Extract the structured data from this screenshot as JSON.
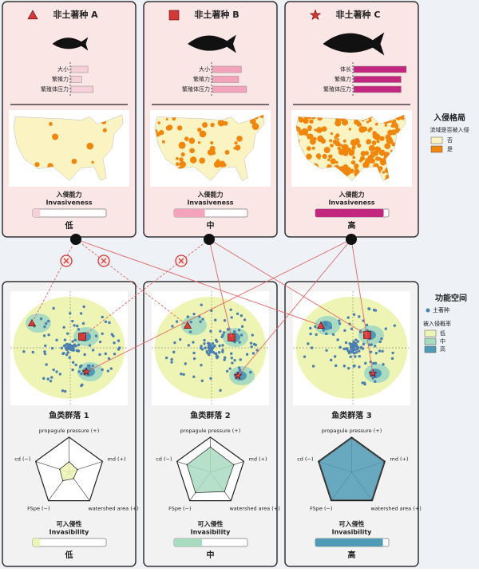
{
  "species": [
    {
      "name": "非土著种 A",
      "traits": [
        {
          "label": "大小",
          "value": 0.32
        },
        {
          "label": "繁殖力",
          "value": 0.2
        },
        {
          "label": "繁殖体压力",
          "value": 0.42
        }
      ],
      "invasiveness": 0.1,
      "level": "低"
    },
    {
      "name": "非土著种 B",
      "traits": [
        {
          "label": "大小",
          "value": 0.55
        },
        {
          "label": "繁殖力",
          "value": 0.5
        },
        {
          "label": "繁殖体压力",
          "value": 0.65
        }
      ],
      "invasiveness": 0.42,
      "level": "中"
    },
    {
      "name": "非土著种 C",
      "traits": [
        {
          "label": "体长",
          "value": 1.0
        },
        {
          "label": "繁殖力",
          "value": 0.9
        },
        {
          "label": "繁殖体压力",
          "value": 0.9
        }
      ],
      "invasiveness": 0.93,
      "level": "高"
    }
  ],
  "invasiveness_title": "入侵能力",
  "invasiveness_subtitle": "Invasiveness",
  "map_legend": {
    "title": "入侵格局",
    "subtitle": "流域是否被入侵",
    "items": [
      {
        "label": "否",
        "color": "#fbf3c2"
      },
      {
        "label": "是",
        "color": "#f0860c"
      }
    ]
  },
  "communities": [
    {
      "name": "鱼类群落 1",
      "radar": [
        0.3,
        0.25,
        0.22,
        0.3,
        0.28
      ],
      "invasibility": 0.1,
      "level": "低"
    },
    {
      "name": "鱼类群落 2",
      "radar": [
        0.72,
        0.7,
        0.68,
        0.72,
        0.7
      ],
      "invasibility": 0.38,
      "level": "中"
    },
    {
      "name": "鱼类群落 3",
      "radar": [
        0.97,
        0.97,
        0.97,
        0.97,
        0.97
      ],
      "invasibility": 0.92,
      "level": "高"
    }
  ],
  "radar_axes": [
    "propagule pressure (+)",
    "md (+)",
    "watershed area (+)",
    "FSpe (−)",
    "cd (−)"
  ],
  "invasibility_title": "可入侵性",
  "invasibility_subtitle": "Invasibility",
  "space_legend": {
    "title": "功能空间",
    "native": "土著种",
    "prob_title": "被入侵概率",
    "items": [
      {
        "label": "低",
        "color": "#eef5b4"
      },
      {
        "label": "中",
        "color": "#a9dbc0"
      },
      {
        "label": "高",
        "color": "#4f9ab5"
      }
    ]
  }
}
